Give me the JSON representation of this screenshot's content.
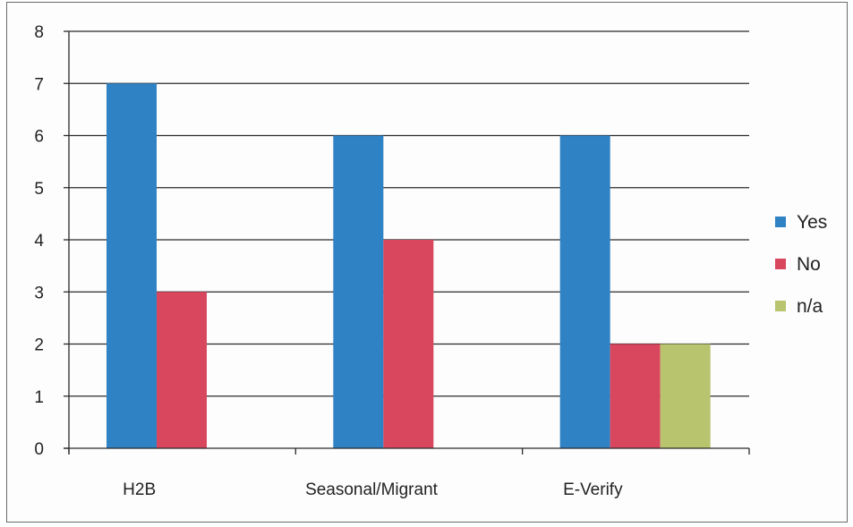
{
  "chart_data": {
    "type": "bar",
    "title": "",
    "xlabel": "",
    "ylabel": "",
    "categories": [
      "H2B",
      "Seasonal/Migrant",
      "E-Verify"
    ],
    "series": [
      {
        "name": "Yes",
        "color": "#2f82c4",
        "values": [
          7,
          6,
          6
        ]
      },
      {
        "name": "No",
        "color": "#d9475f",
        "values": [
          3,
          4,
          2
        ]
      },
      {
        "name": "n/a",
        "color": "#b9c46e",
        "values": [
          null,
          null,
          2
        ]
      }
    ],
    "ylim": [
      0,
      8
    ],
    "yticks": [
      "0",
      "1",
      "2",
      "3",
      "4",
      "5",
      "6",
      "7",
      "8"
    ],
    "grid": true,
    "legend_position": "right"
  }
}
